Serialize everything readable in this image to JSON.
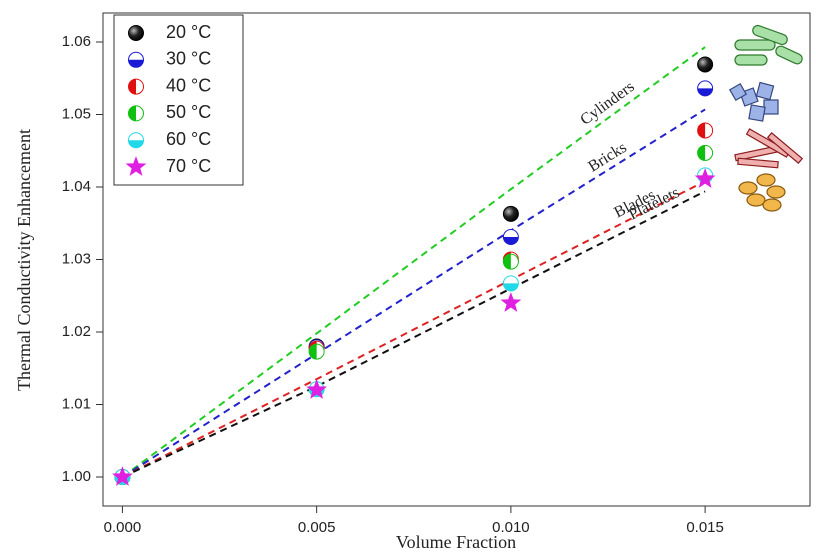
{
  "chart_data": {
    "type": "scatter",
    "x_label": "Volume Fraction",
    "y_label": "Thermal Conductivity Enhancement",
    "x": [
      0,
      0.005,
      0.01,
      0.015
    ],
    "xlim": [
      -0.0005,
      0.0177
    ],
    "ylim": [
      0.996,
      1.064
    ],
    "xticks": [
      {
        "value": 0,
        "label": "0.000"
      },
      {
        "value": 0.005,
        "label": "0.005"
      },
      {
        "value": 0.01,
        "label": "0.010"
      },
      {
        "value": 0.015,
        "label": "0.015"
      }
    ],
    "yticks": [
      {
        "value": 1.0,
        "label": "1.00"
      },
      {
        "value": 1.01,
        "label": "1.01"
      },
      {
        "value": 1.02,
        "label": "1.02"
      },
      {
        "value": 1.03,
        "label": "1.03"
      },
      {
        "value": 1.04,
        "label": "1.04"
      },
      {
        "value": 1.05,
        "label": "1.05"
      },
      {
        "value": 1.06,
        "label": "1.06"
      }
    ],
    "legend": "upper-left",
    "series": [
      {
        "name": "20 °C",
        "color": "#000000",
        "marker": "full",
        "values": [
          1.0,
          1.018,
          1.0363,
          1.0569
        ]
      },
      {
        "name": "30 °C",
        "color": "#1a1ad6",
        "marker": "bottom-half",
        "values": [
          1.0,
          1.0179,
          1.0331,
          1.0536
        ]
      },
      {
        "name": "40 °C",
        "color": "#e01010",
        "marker": "left-half",
        "values": [
          1.0,
          1.0177,
          1.03,
          1.0478
        ]
      },
      {
        "name": "50 °C",
        "color": "#10c010",
        "marker": "left-half",
        "values": [
          1.0,
          1.0173,
          1.0297,
          1.0447
        ]
      },
      {
        "name": "60 °C",
        "color": "#20d8e8",
        "marker": "bottom-half",
        "values": [
          1.0,
          1.0121,
          1.0267,
          1.0416
        ]
      },
      {
        "name": "70 °C",
        "color": "#e020e0",
        "marker": "star",
        "values": [
          1.0,
          1.012,
          1.024,
          1.0411
        ]
      }
    ],
    "fits": [
      {
        "name": "Cylinders",
        "color": "#22cc22",
        "values": [
          1.0,
          1.0198,
          1.0397,
          1.0593
        ]
      },
      {
        "name": "Bricks",
        "color": "#2222cc",
        "values": [
          1.0,
          1.017,
          1.034,
          1.0507
        ]
      },
      {
        "name": "Blades",
        "color": "#dd2222",
        "values": [
          1.0,
          1.0135,
          1.0272,
          1.0408
        ]
      },
      {
        "name": "Platelets",
        "color": "#111111",
        "values": [
          1.0,
          1.0125,
          1.026,
          1.0394
        ]
      }
    ]
  }
}
